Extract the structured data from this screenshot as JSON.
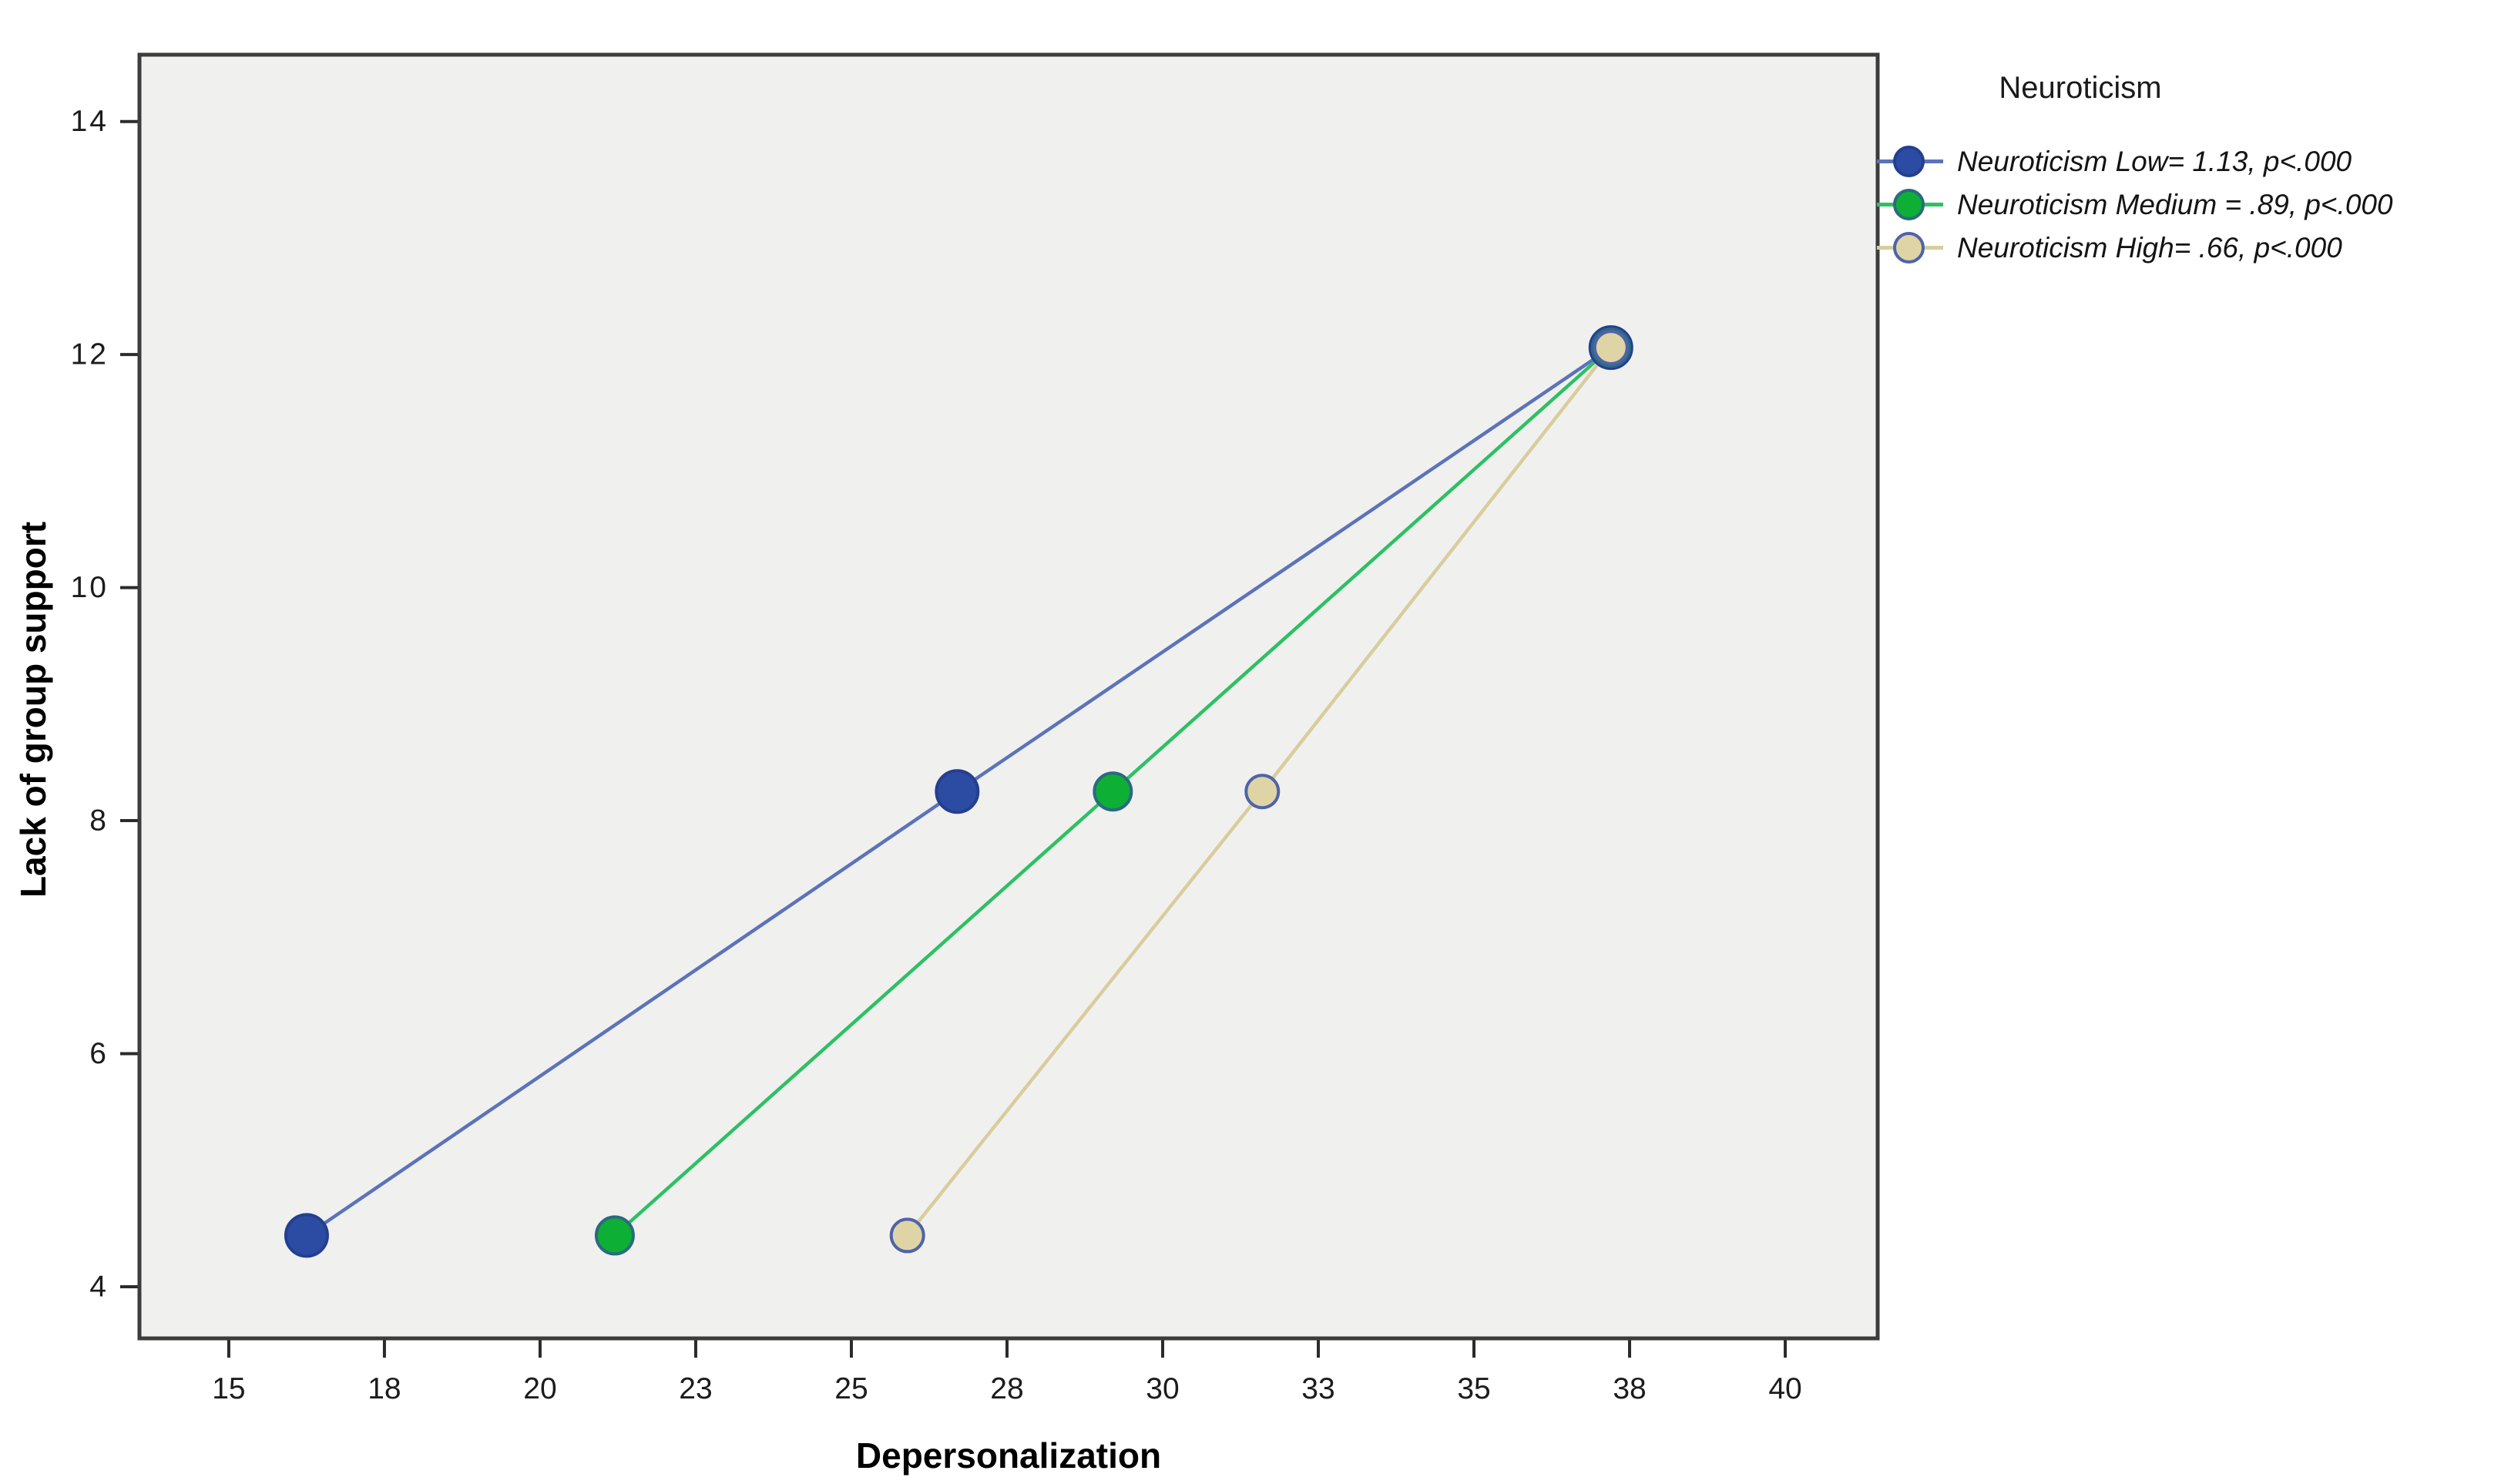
{
  "chart_data": {
    "type": "line",
    "xlabel": "Depersonalization",
    "ylabel": "Lack of group support",
    "xlim": [
      13.59,
      41.46
    ],
    "ylim": [
      3.57,
      14.56
    ],
    "x_ticks": {
      "values": [
        15,
        17.5,
        20,
        22.5,
        25,
        27.5,
        30,
        32.5,
        35,
        37.5,
        40
      ],
      "labels": [
        "15",
        "18",
        "20",
        "23",
        "25",
        "28",
        "30",
        "33",
        "35",
        "38",
        "40"
      ]
    },
    "y_ticks": {
      "values": [
        4,
        6,
        8,
        10,
        12,
        14
      ],
      "labels": [
        "4",
        "6",
        "8",
        "10",
        "12",
        "14"
      ]
    },
    "plot_bg_color": "#f0f0ef",
    "frame_color": "#3c3c3c",
    "tick_color": "#2b2b2b",
    "tick_label_color": "#1c1c1c",
    "legend": {
      "title": "Neuroticism",
      "position": "top-right"
    },
    "series": [
      {
        "name": "Neuroticism Low",
        "legend_label": "Neuroticism Low= 1.13, p<.000",
        "slope": 1.13,
        "p_text": "p<.000",
        "line_color": "#5c73b9",
        "marker_fill": "#2c4ba3",
        "marker_border": "#243f8f",
        "marker_radius": 27,
        "points": [
          [
            16.25,
            4.44
          ],
          [
            26.7,
            8.25
          ],
          [
            37.2,
            12.06
          ]
        ]
      },
      {
        "name": "Neuroticism Medium",
        "legend_label": "Neuroticism Medium = .89, p<.000",
        "slope": 0.89,
        "p_text": "p<.000",
        "line_color": "#2ec063",
        "marker_fill": "#0daf34",
        "marker_border": "#2b6a80",
        "marker_radius": 24,
        "points": [
          [
            21.2,
            4.44
          ],
          [
            29.2,
            8.25
          ],
          [
            37.2,
            12.06
          ]
        ]
      },
      {
        "name": "Neuroticism High",
        "legend_label": "Neuroticism High= .66, p<.000",
        "slope": 0.66,
        "p_text": "p<.000",
        "line_color": "#d8cd9c",
        "marker_fill": "#ded4a6",
        "marker_border": "#5063a9",
        "marker_radius": 21,
        "points": [
          [
            25.9,
            4.44
          ],
          [
            31.6,
            8.25
          ],
          [
            37.2,
            12.06
          ]
        ]
      }
    ]
  }
}
